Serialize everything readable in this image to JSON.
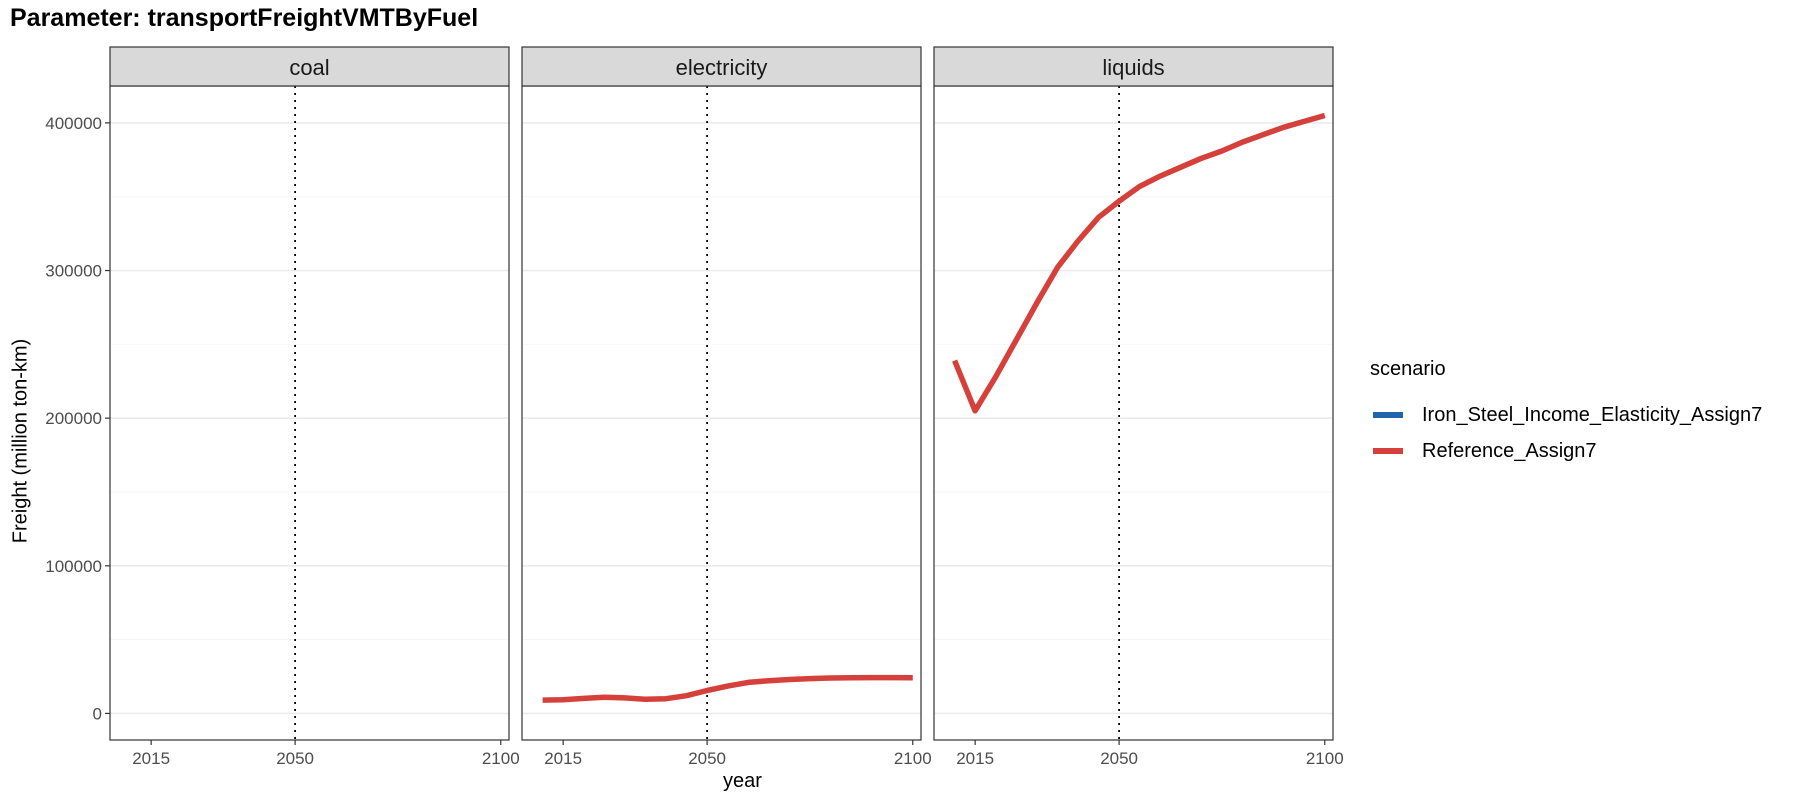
{
  "chart_data": {
    "type": "line",
    "title": "Parameter: transportFreightVMTByFuel",
    "xlabel": "year",
    "ylabel": "Freight (million ton-km)",
    "xlim": [
      2005,
      2102
    ],
    "ylim": [
      -18000,
      425000
    ],
    "x_ticks": [
      2015,
      2050,
      2100
    ],
    "y_ticks": [
      0,
      100000,
      200000,
      300000,
      400000
    ],
    "y_tick_labels": [
      "0",
      "100000",
      "200000",
      "300000",
      "400000"
    ],
    "reference_line_x": 2050,
    "grid": true,
    "legend": {
      "title": "scenario",
      "position": "right",
      "entries": [
        {
          "name": "Iron_Steel_Income_Elasticity_Assign7",
          "color": "#2166ac"
        },
        {
          "name": "Reference_Assign7",
          "color": "#d6403a"
        }
      ]
    },
    "panels": [
      {
        "name": "coal",
        "series": []
      },
      {
        "name": "electricity",
        "series": [
          {
            "name": "Reference_Assign7",
            "color": "#d6403a",
            "x": [
              2010,
              2015,
              2020,
              2025,
              2030,
              2035,
              2040,
              2045,
              2050,
              2055,
              2060,
              2065,
              2070,
              2075,
              2080,
              2085,
              2090,
              2095,
              2100
            ],
            "y": [
              9000,
              9200,
              10200,
              11000,
              10500,
              9600,
              10000,
              12000,
              15500,
              18500,
              21000,
              22200,
              23000,
              23600,
              24000,
              24100,
              24300,
              24300,
              24200
            ]
          }
        ]
      },
      {
        "name": "liquids",
        "series": [
          {
            "name": "Reference_Assign7",
            "color": "#d6403a",
            "x": [
              2010,
              2015,
              2020,
              2025,
              2030,
              2035,
              2040,
              2045,
              2050,
              2055,
              2060,
              2065,
              2070,
              2075,
              2080,
              2085,
              2090,
              2095,
              2100
            ],
            "y": [
              239000,
              205000,
              228000,
              253000,
              278000,
              302000,
              320000,
              336000,
              347000,
              357000,
              364000,
              370000,
              376000,
              381000,
              387000,
              392000,
              397000,
              401000,
              405000
            ]
          }
        ]
      }
    ]
  }
}
